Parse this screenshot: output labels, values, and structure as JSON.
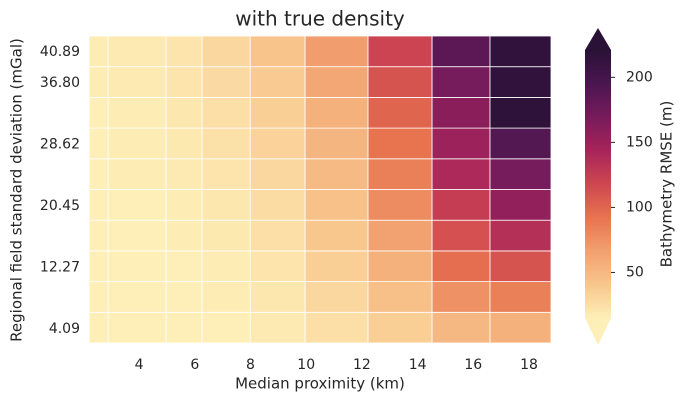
{
  "chart_data": {
    "type": "heatmap",
    "title": "with true density",
    "x_label": "Median proximity (km)",
    "y_label": "Regional field standard deviation (mGal)",
    "x_edges": [
      2.2,
      2.89,
      4.97,
      6.26,
      7.99,
      9.96,
      12.22,
      14.52,
      16.6,
      18.79
    ],
    "y_edges": [
      2.23,
      6.31,
      10.39,
      14.47,
      18.55,
      22.63,
      26.71,
      30.79,
      34.87,
      38.95,
      43.03
    ],
    "xlim": [
      2.2,
      18.79
    ],
    "ylim": [
      2.23,
      43.03
    ],
    "xticks": [
      4,
      6,
      8,
      10,
      12,
      14,
      16,
      18
    ],
    "yticks": [
      4.09,
      12.27,
      20.45,
      28.62,
      {
        "value": 36.8,
        "label": "36.80"
      },
      40.89
    ],
    "values": [
      [
        12,
        13,
        14,
        15,
        18,
        25,
        35,
        50,
        55
      ],
      [
        13,
        14,
        15,
        16,
        20,
        30,
        45,
        75,
        85
      ],
      [
        13,
        14,
        15,
        17,
        22,
        35,
        55,
        95,
        110
      ],
      [
        14,
        15,
        16,
        19,
        25,
        40,
        65,
        112,
        135
      ],
      [
        14,
        15,
        17,
        20,
        27,
        44,
        78,
        125,
        155
      ],
      [
        15,
        16,
        18,
        22,
        30,
        48,
        85,
        140,
        170
      ],
      [
        15,
        16,
        19,
        24,
        33,
        52,
        92,
        150,
        190
      ],
      [
        15,
        17,
        20,
        25,
        35,
        55,
        100,
        160,
        218
      ],
      [
        16,
        18,
        22,
        28,
        38,
        62,
        110,
        170,
        215
      ],
      [
        16,
        18,
        22,
        30,
        42,
        68,
        120,
        185,
        215
      ]
    ],
    "colorbar": {
      "label": "Bathymetry RMSE (m)",
      "clim": [
        15,
        221
      ],
      "ticks": [
        50,
        100,
        150,
        200
      ],
      "extend": "both",
      "colors": [
        "#fdefb7",
        "#f8c68d",
        "#f2a06f",
        "#e7734f",
        "#cf4650",
        "#a7245a",
        "#771b5b",
        "#4a1650",
        "#2a1136"
      ]
    }
  }
}
